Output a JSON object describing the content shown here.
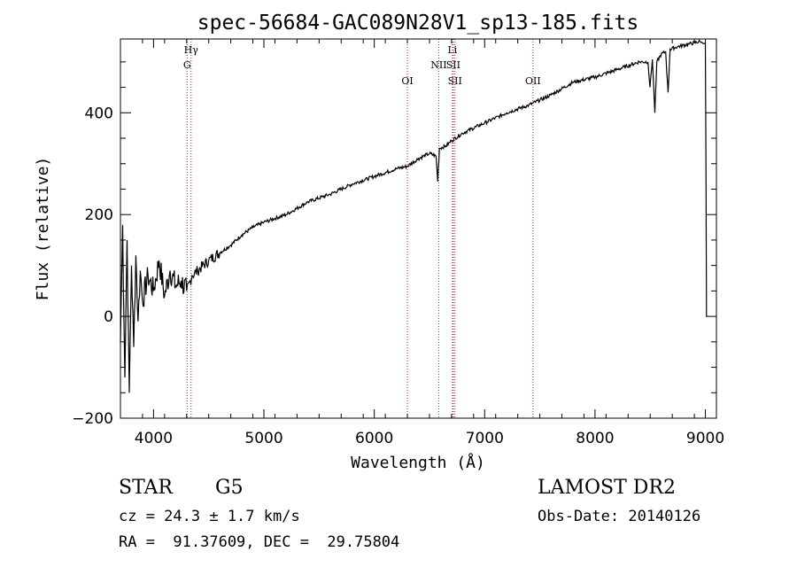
{
  "chart_data": {
    "type": "line",
    "title": "spec-56684-GAC089N28V1_sp13-185.fits",
    "xlabel": "Wavelength (Å)",
    "ylabel": "Flux (relative)",
    "xlim": [
      3700,
      9100
    ],
    "ylim": [
      -200,
      545
    ],
    "x_ticks": [
      4000,
      5000,
      6000,
      7000,
      8000,
      9000
    ],
    "x_tick_labels": [
      "4000",
      "5000",
      "6000",
      "7000",
      "8000",
      "9000"
    ],
    "y_ticks": [
      -200,
      0,
      200,
      400
    ],
    "y_tick_labels": [
      "−200",
      "0",
      "200",
      "400"
    ],
    "line_color": "#000000",
    "line_marker_color": "#b22222",
    "series": [
      {
        "x": [
          3700,
          3720,
          3740,
          3760,
          3780,
          3800,
          3820,
          3840,
          3860,
          3880,
          3900,
          3950,
          4000,
          4050,
          4100,
          4150,
          4200,
          4250,
          4300,
          4350,
          4400,
          4500,
          4600,
          4700,
          4800,
          4900,
          5000,
          5200,
          5400,
          5600,
          5800,
          6000,
          6200,
          6300,
          6400,
          6500,
          6560,
          6575,
          6590,
          6650,
          6700,
          6800,
          7000,
          7200,
          7400,
          7600,
          7800,
          8000,
          8200,
          8400,
          8480,
          8498,
          8520,
          8542,
          8560,
          8600,
          8640,
          8662,
          8680,
          8750,
          8850,
          8950,
          9000,
          9005,
          9010
        ],
        "y": [
          -50,
          180,
          -120,
          150,
          -150,
          100,
          -60,
          120,
          -10,
          90,
          30,
          80,
          50,
          110,
          40,
          90,
          60,
          70,
          50,
          80,
          90,
          110,
          125,
          140,
          160,
          175,
          185,
          200,
          225,
          240,
          260,
          275,
          290,
          295,
          310,
          320,
          315,
          265,
          330,
          335,
          345,
          360,
          380,
          400,
          415,
          435,
          460,
          470,
          485,
          500,
          500,
          450,
          505,
          400,
          500,
          515,
          520,
          440,
          525,
          530,
          535,
          540,
          535,
          300,
          0
        ]
      }
    ],
    "line_ids": [
      {
        "wavelength": 4340,
        "label": "Hγ",
        "row": 1
      },
      {
        "wavelength": 4304,
        "label": "G",
        "row": 2
      },
      {
        "wavelength": 6300,
        "label": "OI",
        "row": 3
      },
      {
        "wavelength": 6584,
        "label": "NII",
        "row": 2
      },
      {
        "wavelength": 6708,
        "label": "Li",
        "row": 1
      },
      {
        "wavelength": 6716,
        "label": "SII",
        "row": 2
      },
      {
        "wavelength": 6731,
        "label": "SII",
        "row": 3
      },
      {
        "wavelength": 7438,
        "label": "OII",
        "row": 3
      }
    ]
  },
  "info": {
    "object_class": "STAR",
    "subclass": "G5",
    "cz": "cz = 24.3 ± 1.7 km/s",
    "radec": "RA =  91.37609, DEC =  29.75804",
    "survey": "LAMOST DR2",
    "obs_date": "Obs-Date: 20140126"
  }
}
